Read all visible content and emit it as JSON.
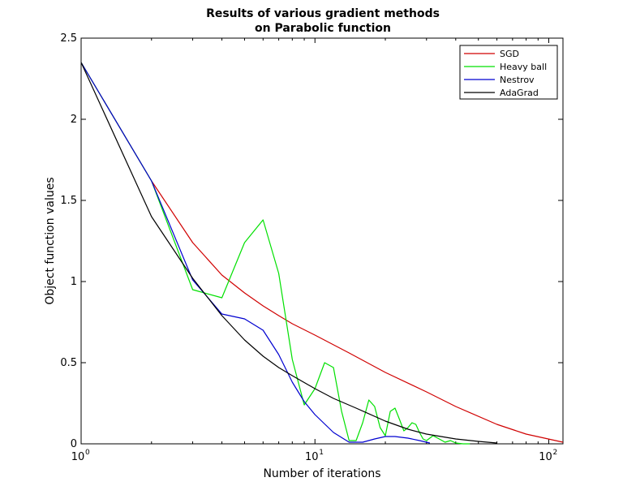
{
  "chart_data": {
    "type": "line",
    "title": [
      "Results of various gradient methods",
      "on Parabolic function"
    ],
    "xlabel": "Number of iterations",
    "ylabel": "Object function values",
    "xscale": "log",
    "xlim": [
      1,
      115
    ],
    "ylim": [
      0,
      2.5
    ],
    "xticks": [
      {
        "value": 1,
        "base": "10",
        "exp": "0"
      },
      {
        "value": 10,
        "base": "10",
        "exp": "1"
      },
      {
        "value": 100,
        "base": "10",
        "exp": "2"
      }
    ],
    "yticks": [
      {
        "value": 0,
        "label": "0"
      },
      {
        "value": 0.5,
        "label": "0.5"
      },
      {
        "value": 1,
        "label": "1"
      },
      {
        "value": 1.5,
        "label": "1.5"
      },
      {
        "value": 2,
        "label": "2"
      },
      {
        "value": 2.5,
        "label": "2.5"
      }
    ],
    "grid": false,
    "legend_position": "top-right",
    "series": [
      {
        "name": "SGD",
        "color": "#d00000",
        "x": [
          1,
          2,
          3,
          4,
          5,
          6,
          7,
          8,
          10,
          14,
          20,
          30,
          40,
          60,
          80,
          115
        ],
        "y": [
          2.35,
          1.62,
          1.24,
          1.04,
          0.93,
          0.85,
          0.79,
          0.74,
          0.67,
          0.56,
          0.44,
          0.32,
          0.23,
          0.12,
          0.06,
          0.01
        ]
      },
      {
        "name": "Heavy ball",
        "color": "#00e000",
        "x": [
          1,
          2,
          3,
          4,
          5,
          6,
          7,
          8,
          9,
          10,
          11,
          12,
          13,
          14,
          15,
          16,
          17,
          18,
          19,
          20,
          21,
          22,
          23,
          24,
          25,
          26,
          27,
          28,
          29,
          30,
          32,
          34,
          36,
          38,
          40,
          43,
          46
        ],
        "y": [
          2.35,
          1.62,
          0.95,
          0.9,
          1.24,
          1.38,
          1.05,
          0.52,
          0.24,
          0.34,
          0.5,
          0.47,
          0.2,
          0.02,
          0.02,
          0.13,
          0.27,
          0.23,
          0.1,
          0.05,
          0.2,
          0.22,
          0.15,
          0.08,
          0.1,
          0.13,
          0.12,
          0.07,
          0.03,
          0.02,
          0.05,
          0.03,
          0.01,
          0.02,
          0.005,
          0.0,
          0.0
        ]
      },
      {
        "name": "Nestrov",
        "color": "#0000d0",
        "x": [
          1,
          2,
          3,
          4,
          5,
          6,
          7,
          8,
          9,
          10,
          12,
          14,
          16,
          18,
          20,
          22,
          25,
          28,
          31
        ],
        "y": [
          2.35,
          1.62,
          1.01,
          0.8,
          0.77,
          0.7,
          0.55,
          0.38,
          0.26,
          0.18,
          0.07,
          0.01,
          0.01,
          0.03,
          0.045,
          0.045,
          0.035,
          0.02,
          0.005
        ]
      },
      {
        "name": "AdaGrad",
        "color": "#000000",
        "x": [
          1,
          2,
          3,
          4,
          5,
          6,
          7,
          8,
          10,
          12,
          15,
          20,
          25,
          30,
          40,
          50,
          60
        ],
        "y": [
          2.35,
          1.4,
          1.02,
          0.79,
          0.64,
          0.54,
          0.47,
          0.42,
          0.34,
          0.28,
          0.22,
          0.14,
          0.09,
          0.06,
          0.03,
          0.015,
          0.005
        ]
      }
    ]
  }
}
